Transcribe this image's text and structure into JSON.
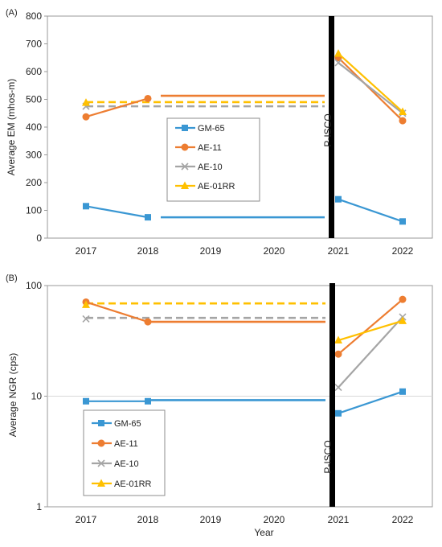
{
  "chart_data": [
    {
      "panel_label": "(A)",
      "type": "line",
      "ylabel": "Average EM (mhos-m)",
      "xlabel": "",
      "categories": [
        "2017",
        "2018",
        "2019",
        "2020",
        "2021",
        "2022"
      ],
      "ylim": [
        0,
        800
      ],
      "yticks": [
        0,
        100,
        200,
        300,
        400,
        500,
        600,
        700,
        800
      ],
      "yscale": "linear",
      "grid": false,
      "legend_position": "center",
      "annotation": "P-ISCO",
      "event_between": [
        "2020",
        "2021"
      ],
      "series": [
        {
          "name": "GM-65",
          "color": "#3A97D3",
          "marker": "square",
          "values": [
            115,
            75,
            null,
            null,
            140,
            60
          ],
          "extension_value": 75,
          "extension_style": "solid"
        },
        {
          "name": "AE-11",
          "color": "#ED7D31",
          "marker": "circle",
          "values": [
            437,
            503,
            null,
            null,
            650,
            423
          ],
          "extension_value": 513,
          "extension_style": "solid"
        },
        {
          "name": "AE-10",
          "color": "#A5A5A5",
          "marker": "x",
          "values": [
            475,
            null,
            null,
            null,
            632,
            450
          ],
          "extension_value": 475,
          "extension_style": "dashed"
        },
        {
          "name": "AE-01RR",
          "color": "#FFC000",
          "marker": "triangle",
          "values": [
            488,
            null,
            null,
            null,
            665,
            455
          ],
          "extension_value": 490,
          "extension_style": "dashed"
        }
      ]
    },
    {
      "panel_label": "(B)",
      "type": "line",
      "ylabel": "Average NGR (cps)",
      "xlabel": "Year",
      "categories": [
        "2017",
        "2018",
        "2019",
        "2020",
        "2021",
        "2022"
      ],
      "ylim": [
        1,
        100
      ],
      "yticks": [
        1,
        10,
        100
      ],
      "yscale": "log",
      "grid": false,
      "legend_position": "bottom-left",
      "annotation": "P-ISCO",
      "event_between": [
        "2020",
        "2021"
      ],
      "series": [
        {
          "name": "GM-65",
          "color": "#3A97D3",
          "marker": "square",
          "values": [
            9,
            9,
            null,
            null,
            7,
            11
          ],
          "extension_value": 9.2,
          "extension_style": "solid"
        },
        {
          "name": "AE-11",
          "color": "#ED7D31",
          "marker": "circle",
          "values": [
            71,
            47,
            null,
            null,
            24,
            75
          ],
          "extension_value": 47,
          "extension_style": "solid"
        },
        {
          "name": "AE-10",
          "color": "#A5A5A5",
          "marker": "x",
          "values": [
            50,
            null,
            null,
            null,
            12,
            52
          ],
          "extension_value": 51,
          "extension_style": "dashed"
        },
        {
          "name": "AE-01RR",
          "color": "#FFC000",
          "marker": "triangle",
          "values": [
            67,
            null,
            null,
            null,
            32,
            48
          ],
          "extension_value": 69,
          "extension_style": "dashed"
        }
      ]
    }
  ]
}
